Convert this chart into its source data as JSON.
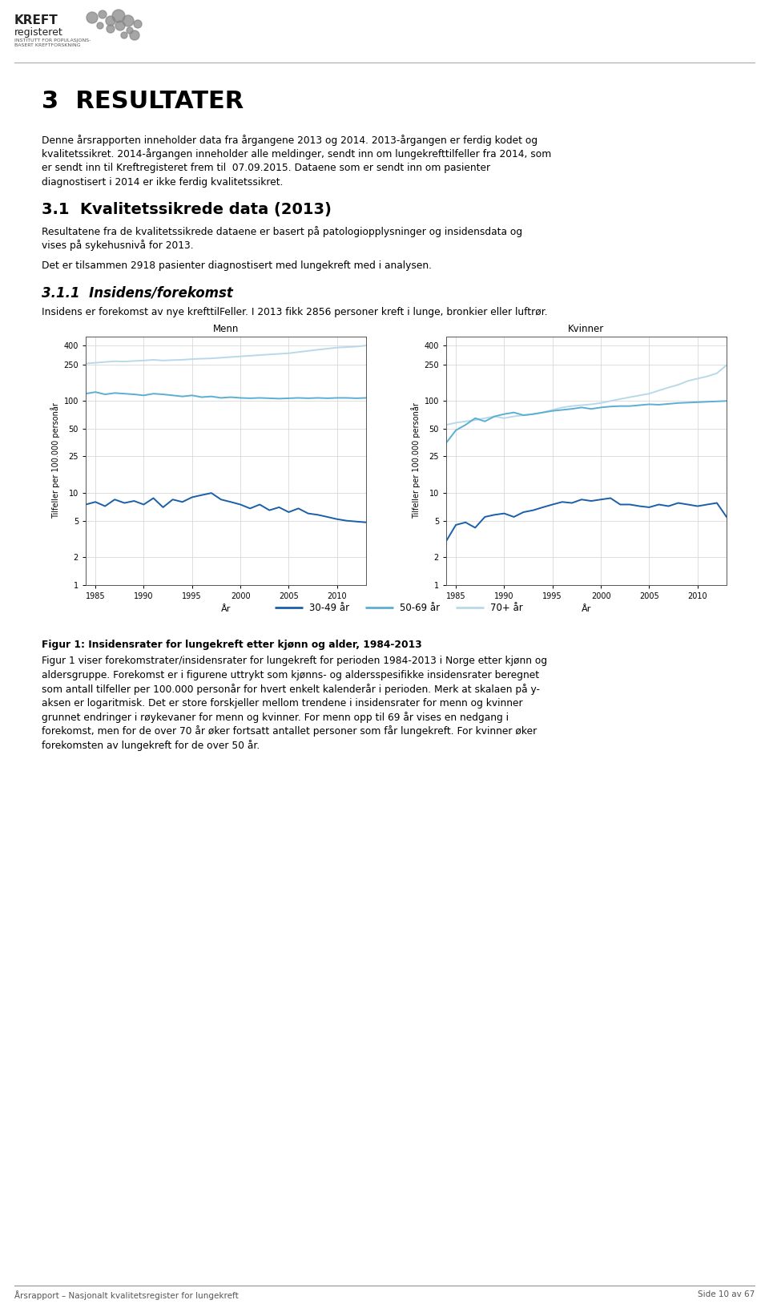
{
  "page_title": "3  RESULTATER",
  "section_heading": "3.1  Kvalitetssikrede data (2013)",
  "subsection_heading": "3.1.1  Insidens/forekomst",
  "para1_lines": [
    "Denne årsrapporten inneholder data fra årgangene 2013 og 2014. 2013-årgangen er ferdig kodet og",
    "kvalitetssikret. 2014-årgangen inneholder alle meldinger, sendt inn om lungekrefttilfeller fra 2014, som",
    "er sendt inn til Kreftregisteret frem til  07.09.2015. Dataene som er sendt inn om pasienter",
    "diagnostisert i 2014 er ikke ferdig kvalitetssikret."
  ],
  "para2_lines": [
    "Resultatene fra de kvalitetssikrede dataene er basert på patologiopplysninger og insidensdata og",
    "vises på sykehusnivå for 2013."
  ],
  "para3": "Det er tilsammen 2918 pasienter diagnostisert med lungekreft med i analysen.",
  "para4": "Insidens er forekomst av nye krefttilFeller. I 2013 fikk 2856 personer kreft i lunge, bronkier eller luftrør.",
  "fig_caption_bold": "Figur 1: Insidensrater for lungekreft etter kjønn og alder, 1984-2013",
  "fig_text_lines": [
    "Figur 1 viser forekomstrater/insidensrater for lungekreft for perioden 1984-2013 i Norge etter kjønn og",
    "aldersgruppe. Forekomst er i figurene uttrykt som kjønns- og aldersspesifikke insidensrater beregnet",
    "som antall tilfeller per 100.000 personår for hvert enkelt kalenderår i perioden. Merk at skalaen på y-",
    "aksen er logaritmisk. Det er store forskjeller mellom trendene i insidensrater for menn og kvinner",
    "grunnet endringer i røykevaner for menn og kvinner. For menn opp til 69 år vises en nedgang i",
    "forekomst, men for de over 70 år øker fortsatt antallet personer som får lungekreft. For kvinner øker",
    "forekomsten av lungekreft for de over 50 år."
  ],
  "footer_left": "Årsrapport – Nasjonalt kvalitetsregister for lungekreft",
  "footer_right": "Side 10 av 67",
  "years": [
    1984,
    1985,
    1986,
    1987,
    1988,
    1989,
    1990,
    1991,
    1992,
    1993,
    1994,
    1995,
    1996,
    1997,
    1998,
    1999,
    2000,
    2001,
    2002,
    2003,
    2004,
    2005,
    2006,
    2007,
    2008,
    2009,
    2010,
    2011,
    2012,
    2013
  ],
  "men_age1": [
    7.5,
    8.0,
    7.2,
    8.5,
    7.8,
    8.2,
    7.5,
    8.8,
    7.0,
    8.5,
    8.0,
    9.0,
    9.5,
    10.0,
    8.5,
    8.0,
    7.5,
    6.8,
    7.5,
    6.5,
    7.0,
    6.2,
    6.8,
    6.0,
    5.8,
    5.5,
    5.2,
    5.0,
    4.9,
    4.8
  ],
  "men_age2": [
    120,
    125,
    118,
    122,
    120,
    118,
    115,
    120,
    118,
    115,
    112,
    115,
    110,
    112,
    108,
    110,
    108,
    107,
    108,
    107,
    106,
    107,
    108,
    107,
    108,
    107,
    108,
    108,
    107,
    108
  ],
  "men_age3": [
    255,
    260,
    265,
    270,
    268,
    272,
    275,
    280,
    275,
    278,
    280,
    285,
    288,
    290,
    295,
    300,
    305,
    310,
    315,
    320,
    325,
    330,
    340,
    350,
    360,
    370,
    380,
    385,
    390,
    400
  ],
  "women_age1": [
    3.0,
    4.5,
    4.8,
    4.2,
    5.5,
    5.8,
    6.0,
    5.5,
    6.2,
    6.5,
    7.0,
    7.5,
    8.0,
    7.8,
    8.5,
    8.2,
    8.5,
    8.8,
    7.5,
    7.5,
    7.2,
    7.0,
    7.5,
    7.2,
    7.8,
    7.5,
    7.2,
    7.5,
    7.8,
    5.5
  ],
  "women_age2": [
    35,
    48,
    55,
    65,
    60,
    68,
    72,
    75,
    70,
    72,
    75,
    78,
    80,
    82,
    85,
    82,
    85,
    87,
    88,
    88,
    90,
    92,
    91,
    93,
    95,
    96,
    97,
    98,
    99,
    100
  ],
  "women_age3": [
    55,
    58,
    60,
    62,
    65,
    68,
    65,
    68,
    70,
    72,
    75,
    80,
    85,
    88,
    90,
    92,
    95,
    100,
    105,
    110,
    115,
    120,
    130,
    140,
    150,
    165,
    175,
    185,
    200,
    245
  ],
  "color_age1": "#1a5fa8",
  "color_age2": "#5baed4",
  "color_age3": "#b8d9ea",
  "legend_labels": [
    "30-49 år",
    "50-69 år",
    "70+ år"
  ],
  "chart_title_men": "Menn",
  "chart_title_women": "Kvinner",
  "ylabel": "Tilfeller per 100.000 personår",
  "xlabel": "År",
  "yticks": [
    1,
    2,
    5,
    10,
    25,
    50,
    100,
    250,
    400
  ],
  "ytick_labels": [
    "1",
    "2",
    "5",
    "10",
    "25",
    "50",
    "100",
    "250",
    "400"
  ],
  "xticks": [
    1985,
    1990,
    1995,
    2000,
    2005,
    2010
  ],
  "background_color": "#ffffff",
  "text_color": "#000000",
  "grid_color": "#d0d0d0"
}
